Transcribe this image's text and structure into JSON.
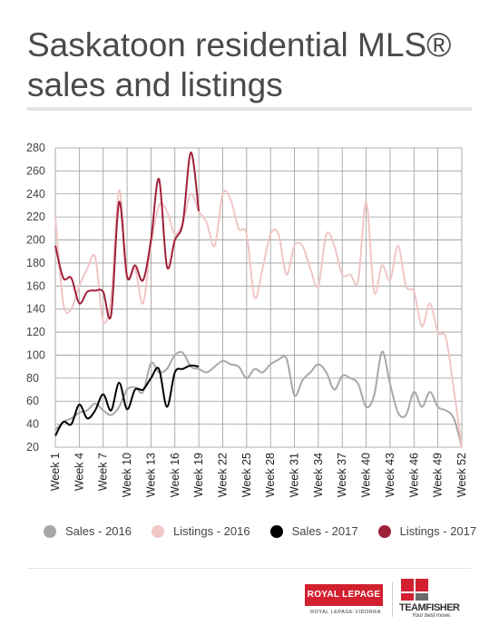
{
  "title_lines": [
    "Saskatoon residential MLS®",
    "sales and listings"
  ],
  "legend": [
    {
      "label": "Sales - 2016",
      "color": "#a8a8a8"
    },
    {
      "label": "Listings - 2016",
      "color": "#f0c6c6"
    },
    {
      "label": "Sales - 2017",
      "color": "#000000"
    },
    {
      "label": "Listings - 2017",
      "color": "#a0203a"
    }
  ],
  "logos": {
    "royal_lepage": "ROYAL LEPAGE",
    "royal_lepage_sub": "ROYAL LEPAGE VIDORRA",
    "teamfisher": "TEAMFISHER",
    "teamfisher_tag": "Your best move."
  },
  "colors": {
    "logo_red": "#d2202f",
    "logo_dark": "#6b6b6b"
  },
  "chart_data": {
    "type": "line",
    "ylim": [
      20,
      280
    ],
    "yticks": [
      20,
      40,
      60,
      80,
      100,
      120,
      140,
      160,
      180,
      200,
      220,
      240,
      260,
      280
    ],
    "xlim": [
      1,
      52
    ],
    "xtick_labels": [
      "Week 1",
      "Week 4",
      "Week 7",
      "Week 10",
      "Week 13",
      "Week 16",
      "Week 19",
      "Week 22",
      "Week 25",
      "Week 28",
      "Week 31",
      "Week 34",
      "Week 37",
      "Week 40",
      "Week 43",
      "Week 46",
      "Week 49",
      "Week 52"
    ],
    "xtick_weeks": [
      1,
      4,
      7,
      10,
      13,
      16,
      19,
      22,
      25,
      28,
      31,
      34,
      37,
      40,
      43,
      46,
      49,
      52
    ],
    "grid": true,
    "legend_position": "bottom",
    "series": [
      {
        "name": "Sales - 2016",
        "color": "#a8a8a8",
        "x": [
          1,
          2,
          3,
          4,
          5,
          6,
          7,
          8,
          9,
          10,
          11,
          12,
          13,
          14,
          15,
          16,
          17,
          18,
          19,
          20,
          21,
          22,
          23,
          24,
          25,
          26,
          27,
          28,
          29,
          30,
          31,
          32,
          33,
          34,
          35,
          36,
          37,
          38,
          39,
          40,
          41,
          42,
          43,
          44,
          45,
          46,
          47,
          48,
          49,
          50,
          51,
          52
        ],
        "values": [
          35,
          42,
          45,
          50,
          52,
          58,
          52,
          48,
          55,
          70,
          72,
          68,
          93,
          85,
          88,
          100,
          102,
          90,
          88,
          85,
          90,
          95,
          92,
          90,
          80,
          88,
          85,
          92,
          96,
          97,
          65,
          78,
          85,
          92,
          85,
          70,
          82,
          80,
          75,
          55,
          65,
          103,
          75,
          50,
          48,
          68,
          55,
          68,
          55,
          52,
          45,
          20
        ]
      },
      {
        "name": "Listings - 2016",
        "color": "#f0c6c6",
        "x": [
          1,
          2,
          3,
          4,
          5,
          6,
          7,
          8,
          9,
          10,
          11,
          12,
          13,
          14,
          15,
          16,
          17,
          18,
          19,
          20,
          21,
          22,
          23,
          24,
          25,
          26,
          27,
          28,
          29,
          30,
          31,
          32,
          33,
          34,
          35,
          36,
          37,
          38,
          39,
          40,
          41,
          42,
          43,
          44,
          45,
          46,
          47,
          48,
          49,
          50,
          51,
          52
        ],
        "values": [
          220,
          145,
          140,
          160,
          175,
          185,
          130,
          150,
          243,
          170,
          175,
          145,
          195,
          230,
          225,
          205,
          215,
          240,
          225,
          215,
          195,
          240,
          235,
          210,
          205,
          150,
          175,
          205,
          205,
          170,
          195,
          195,
          175,
          160,
          205,
          195,
          170,
          170,
          165,
          233,
          155,
          178,
          165,
          195,
          160,
          155,
          125,
          145,
          120,
          115,
          70,
          20
        ]
      },
      {
        "name": "Sales - 2017",
        "color": "#000000",
        "x": [
          1,
          2,
          3,
          4,
          5,
          6,
          7,
          8,
          9,
          10,
          11,
          12,
          13,
          14,
          15,
          16,
          17,
          18,
          19
        ],
        "values": [
          30,
          42,
          40,
          57,
          45,
          52,
          66,
          52,
          76,
          53,
          70,
          70,
          80,
          88,
          55,
          85,
          88,
          91,
          90
        ]
      },
      {
        "name": "Listings - 2017",
        "color": "#a0203a",
        "x": [
          1,
          2,
          3,
          4,
          5,
          6,
          7,
          8,
          9,
          10,
          11,
          12,
          13,
          14,
          15,
          16,
          17,
          18,
          19
        ],
        "values": [
          195,
          167,
          167,
          145,
          155,
          156,
          155,
          135,
          233,
          168,
          178,
          165,
          200,
          253,
          177,
          200,
          215,
          276,
          225
        ]
      }
    ]
  }
}
